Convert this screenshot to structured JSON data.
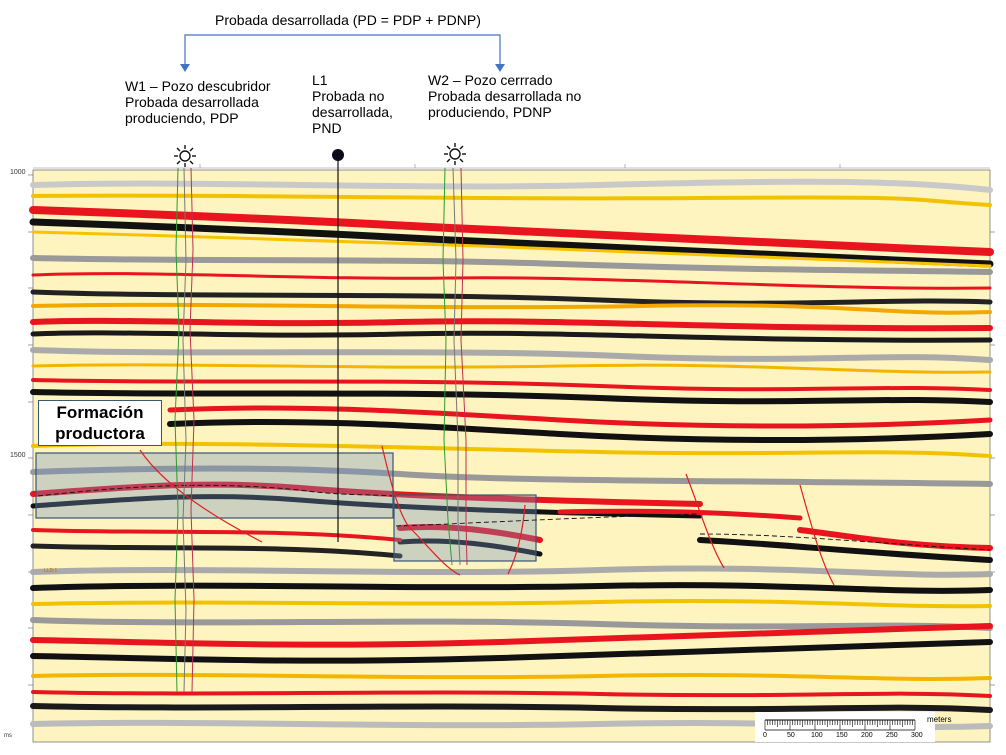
{
  "title": "Probada desarrollada (PD = PDP + PDNP)",
  "wells": [
    {
      "id": "w1",
      "label": "W1 – Pozo descubridor\nProbada desarrollada\nproduciendo, PDP",
      "icon": "sun-well-icon"
    },
    {
      "id": "l1",
      "label": "L1\nProbada no\ndesarrollada,\nPND",
      "icon": "filled-circle-location-icon"
    },
    {
      "id": "w2",
      "label": "W2 – Pozo cerrrado\nProbada desarrollada no\nproduciendo, PDNP",
      "icon": "sun-well-icon"
    }
  ],
  "formation_label": "Formación\nproductora",
  "y_axis": {
    "ticks": [
      "1000",
      "1500"
    ],
    "unit": "ms"
  },
  "scale_bar": {
    "unit": "meters",
    "ticks": [
      "0",
      "50",
      "100",
      "150",
      "200",
      "250",
      "300"
    ]
  },
  "colors": {
    "bracket": "#4472c4",
    "highlight_box": "#4a6fa0",
    "horizon_red": "#e8141e",
    "well_green": "#2e9a2e",
    "well_red": "#c0304c",
    "fault_red": "#e02020"
  }
}
